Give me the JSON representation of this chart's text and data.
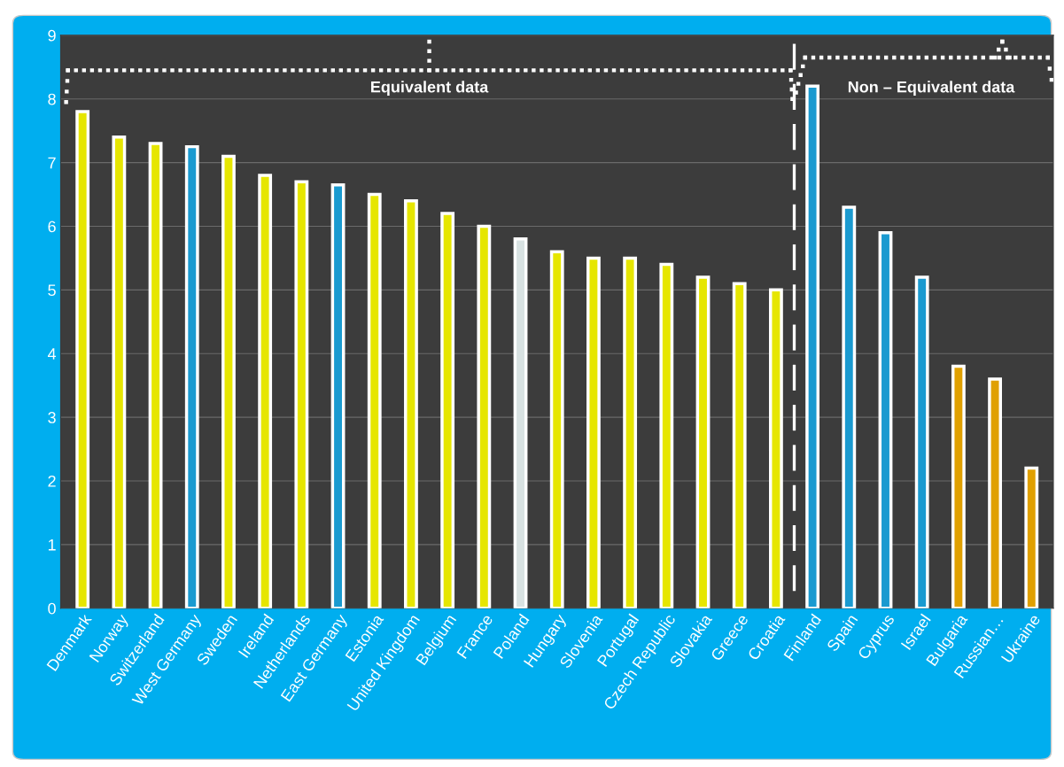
{
  "chart_data": {
    "type": "bar",
    "categories": [
      "Denmark",
      "Norway",
      "Switzerland",
      "West Germany",
      "Sweden",
      "Ireland",
      "Netherlands",
      "East Germany",
      "Estonia",
      "United Kingdom",
      "Belgium",
      "France",
      "Poland",
      "Hungary",
      "Slovenia",
      "Portugal",
      "Czech Republic",
      "Slovakia",
      "Greece",
      "Croatia",
      "Finland",
      "Spain",
      "Cyprus",
      "Israel",
      "Bulgaria",
      "Russian…",
      "Ukraine"
    ],
    "values": [
      7.8,
      7.4,
      7.3,
      7.25,
      7.1,
      6.8,
      6.7,
      6.65,
      6.5,
      6.4,
      6.2,
      6.0,
      5.8,
      5.6,
      5.5,
      5.5,
      5.4,
      5.2,
      5.1,
      5.0,
      8.2,
      6.3,
      5.9,
      5.2,
      3.8,
      3.6,
      2.2
    ],
    "colors": [
      "#e6e600",
      "#e6e600",
      "#e6e600",
      "#1a9ad0",
      "#e6e600",
      "#e6e600",
      "#e6e600",
      "#1a9ad0",
      "#e6e600",
      "#e6e600",
      "#e6e600",
      "#e6e600",
      "#d8e2e2",
      "#e6e600",
      "#e6e600",
      "#e6e600",
      "#e6e600",
      "#e6e600",
      "#e6e600",
      "#e6e600",
      "#1a9ad0",
      "#1a9ad0",
      "#1a9ad0",
      "#1a9ad0",
      "#e0a000",
      "#e0a000",
      "#e0a000"
    ],
    "ylim": [
      0,
      9
    ],
    "yticks": [
      0,
      1,
      2,
      3,
      4,
      5,
      6,
      7,
      8,
      9
    ],
    "grid": "y",
    "annotations": [
      "Equivalent data",
      "Non – Equivalent data"
    ]
  }
}
